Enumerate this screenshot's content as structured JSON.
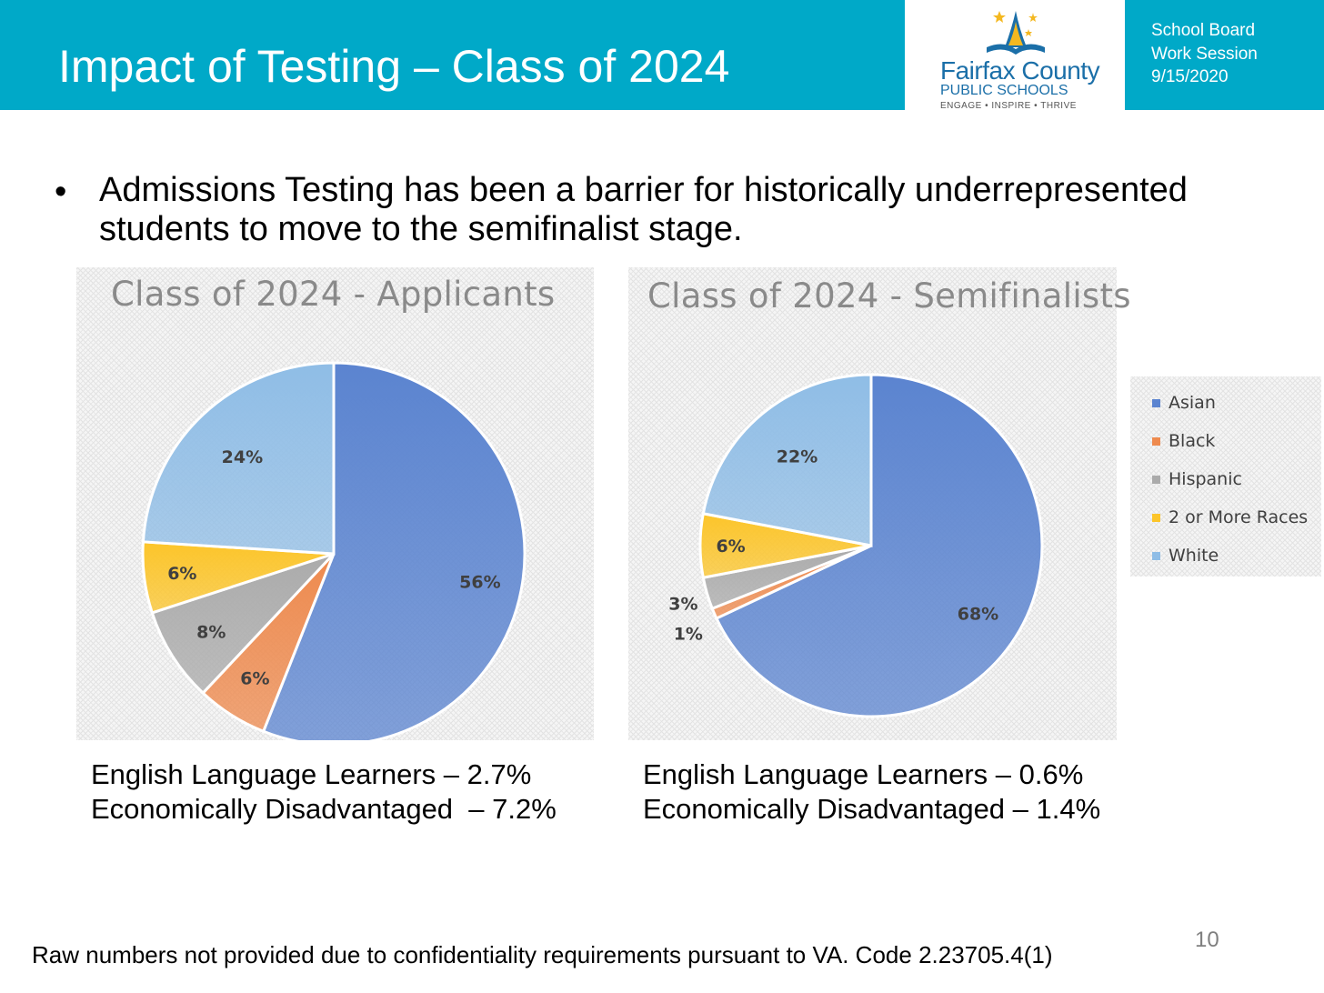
{
  "header": {
    "title": "Impact of Testing – Class of 2024",
    "brand_color": "#00a9c8",
    "session_lines": [
      "School Board",
      "Work Session",
      "9/15/2020"
    ]
  },
  "logo": {
    "name": "Fairfax County",
    "sub": "PUBLIC SCHOOLS",
    "tagline": "ENGAGE • INSPIRE • THRIVE"
  },
  "bullet": {
    "text": "Admissions Testing has been a barrier for historically underrepresented students to move to the semifinalist stage."
  },
  "legend": {
    "items": [
      {
        "label": "Asian",
        "color": "#5b84d0"
      },
      {
        "label": "Black",
        "color": "#ee8a4e"
      },
      {
        "label": "Hispanic",
        "color": "#ababab"
      },
      {
        "label": "2 or More Races",
        "color": "#fcc52a"
      },
      {
        "label": "White",
        "color": "#8fbde6"
      }
    ]
  },
  "chart_data": [
    {
      "type": "pie",
      "title": "Class of 2024 - Applicants",
      "categories": [
        "Asian",
        "Black",
        "Hispanic",
        "2 or More Races",
        "White"
      ],
      "values": [
        56,
        6,
        8,
        6,
        24
      ],
      "labels": [
        "56%",
        "6%",
        "8%",
        "6%",
        "24%"
      ],
      "legend_position": "right"
    },
    {
      "type": "pie",
      "title": "Class of 2024 - Semifinalists",
      "categories": [
        "Asian",
        "Black",
        "Hispanic",
        "2 or More Races",
        "White"
      ],
      "values": [
        68,
        1,
        3,
        6,
        22
      ],
      "labels": [
        "68%",
        "1%",
        "3%",
        "6%",
        "22%"
      ],
      "legend_position": "right"
    }
  ],
  "stats": {
    "applicants": {
      "ell": "English Language Learners – 2.7%",
      "econ": "Economically Disadvantaged  – 7.2%"
    },
    "semifinalists": {
      "ell": "English Language Learners – 0.6%",
      "econ": "Economically Disadvantaged – 1.4%"
    }
  },
  "footnote": "Raw numbers not provided due to confidentiality requirements pursuant to VA. Code 2.23705.4(1)",
  "page_number": "10"
}
